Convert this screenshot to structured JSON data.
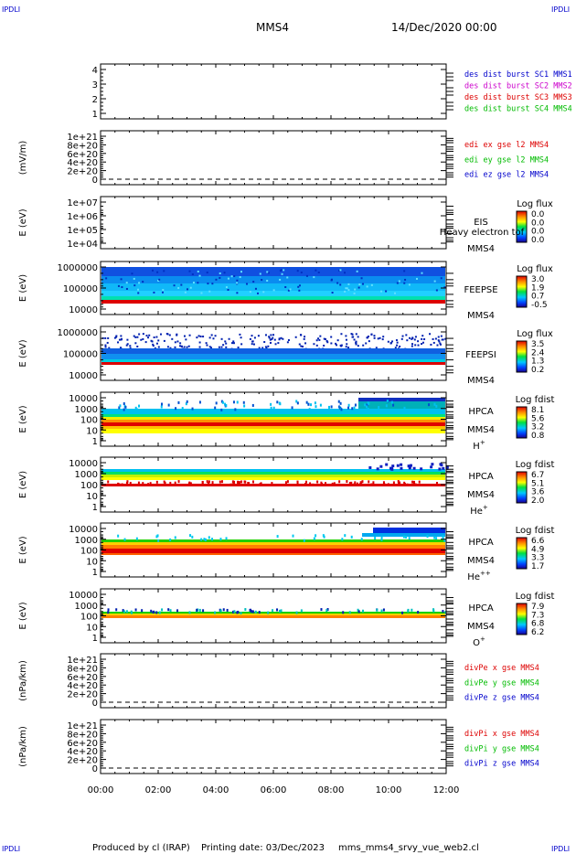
{
  "corner_labels": {
    "top_left": "IPDLI",
    "top_right": "IPDLI",
    "bottom_left": "IPDLI",
    "bottom_right": "IPDLI"
  },
  "header": {
    "spacecraft": "MMS4",
    "date": "14/Dec/2020 00:00"
  },
  "footer": {
    "produced_by": "Produced by cl (IRAP)",
    "printing_date": "Printing date: 03/Dec/2023",
    "filename": "mms_mms4_srvy_vue_web2.cl"
  },
  "colors": {
    "sc1": "#0000cc",
    "sc2": "#cc00cc",
    "sc3": "#dd0000",
    "sc4": "#00bb00",
    "x": "#dd0000",
    "y": "#00bb00",
    "z": "#0000cc"
  },
  "chart_data": {
    "type": "heatmap",
    "x_ticks": [
      "00:00",
      "02:00",
      "04:00",
      "06:00",
      "08:00",
      "10:00",
      "12:00"
    ],
    "xlim_hours": [
      0,
      12
    ],
    "panels": [
      {
        "id": "burst",
        "type": "line",
        "yticks": [
          "4",
          "3",
          "2",
          "1"
        ],
        "legend": [
          {
            "label": "des dist burst SC1 MMS1",
            "color": "#0000cc"
          },
          {
            "label": "des dist burst SC2 MMS2",
            "color": "#cc00cc"
          },
          {
            "label": "des dist burst SC3 MMS3",
            "color": "#dd0000"
          },
          {
            "label": "des dist burst SC4 MMS4",
            "color": "#00bb00"
          }
        ]
      },
      {
        "id": "edi",
        "type": "line",
        "ylabel": "(mV/m)",
        "yticks": [
          "1e+21",
          "8e+20",
          "6e+20",
          "4e+20",
          "2e+20",
          "0"
        ],
        "zero_line": true,
        "legend": [
          {
            "label": "edi ex gse l2 MMS4",
            "color": "#dd0000"
          },
          {
            "label": "edi ey gse l2 MMS4",
            "color": "#00bb00"
          },
          {
            "label": "edi ez gse l2 MMS4",
            "color": "#0000cc"
          }
        ]
      },
      {
        "id": "eis",
        "type": "heatmap",
        "ylabel": "E (eV)",
        "yticks": [
          "1e+07",
          "1e+06",
          "1e+05",
          "1e+04"
        ],
        "instrument": "EIS",
        "overlay": "Heavy electron tof",
        "sc": "MMS4",
        "colorbar_title": "Log flux",
        "colorbar_ticks": [
          "0.0",
          "0.0",
          "0.0",
          "0.0"
        ]
      },
      {
        "id": "feepse",
        "type": "heatmap",
        "ylabel": "E (eV)",
        "yticks": [
          "1000000",
          "100000",
          "10000"
        ],
        "instrument": "FEEPSE",
        "sc": "MMS4",
        "colorbar_title": "Log flux",
        "colorbar_ticks": [
          "3.0",
          "1.9",
          "0.7",
          "-0.5"
        ]
      },
      {
        "id": "feepsi",
        "type": "heatmap",
        "ylabel": "E (eV)",
        "yticks": [
          "1000000",
          "100000",
          "10000"
        ],
        "instrument": "FEEPSI",
        "sc": "MMS4",
        "colorbar_title": "Log flux",
        "colorbar_ticks": [
          "3.5",
          "2.4",
          "1.3",
          "0.2"
        ]
      },
      {
        "id": "hpca_h",
        "type": "heatmap",
        "ylabel": "E (eV)",
        "yticks": [
          "10000",
          "1000",
          "100",
          "10",
          "1"
        ],
        "instrument": "HPCA",
        "sc": "MMS4",
        "species": "H",
        "species_sup": "+",
        "colorbar_title": "Log fdist",
        "colorbar_ticks": [
          "8.1",
          "5.6",
          "3.2",
          "0.8"
        ]
      },
      {
        "id": "hpca_he",
        "type": "heatmap",
        "ylabel": "E (eV)",
        "yticks": [
          "10000",
          "1000",
          "100",
          "10",
          "1"
        ],
        "instrument": "HPCA",
        "sc": "MMS4",
        "species": "He",
        "species_sup": "+",
        "colorbar_title": "Log fdist",
        "colorbar_ticks": [
          "6.7",
          "5.1",
          "3.6",
          "2.0"
        ]
      },
      {
        "id": "hpca_hepp",
        "type": "heatmap",
        "ylabel": "E (eV)",
        "yticks": [
          "10000",
          "1000",
          "100",
          "10",
          "1"
        ],
        "instrument": "HPCA",
        "sc": "MMS4",
        "species": "He",
        "species_sup": "++",
        "colorbar_title": "Log fdist",
        "colorbar_ticks": [
          "6.6",
          "4.9",
          "3.3",
          "1.7"
        ]
      },
      {
        "id": "hpca_o",
        "type": "heatmap",
        "ylabel": "E (eV)",
        "yticks": [
          "10000",
          "1000",
          "100",
          "10",
          "1"
        ],
        "instrument": "HPCA",
        "sc": "MMS4",
        "species": "O",
        "species_sup": "+",
        "colorbar_title": "Log fdist",
        "colorbar_ticks": [
          "7.9",
          "7.3",
          "6.8",
          "6.2"
        ]
      },
      {
        "id": "divpe",
        "type": "line",
        "ylabel": "(nPa/km)",
        "yticks": [
          "1e+21",
          "8e+20",
          "6e+20",
          "4e+20",
          "2e+20",
          "0"
        ],
        "zero_line": true,
        "legend": [
          {
            "label": "divPe x gse MMS4",
            "color": "#dd0000"
          },
          {
            "label": "divPe y gse MMS4",
            "color": "#00bb00"
          },
          {
            "label": "divPe z gse MMS4",
            "color": "#0000cc"
          }
        ]
      },
      {
        "id": "divpi",
        "type": "line",
        "ylabel": "(nPa/km)",
        "yticks": [
          "1e+21",
          "8e+20",
          "6e+20",
          "4e+20",
          "2e+20",
          "0"
        ],
        "zero_line": true,
        "legend": [
          {
            "label": "divPi x gse MMS4",
            "color": "#dd0000"
          },
          {
            "label": "divPi y gse MMS4",
            "color": "#00bb00"
          },
          {
            "label": "divPi z gse MMS4",
            "color": "#0000cc"
          }
        ]
      }
    ]
  }
}
